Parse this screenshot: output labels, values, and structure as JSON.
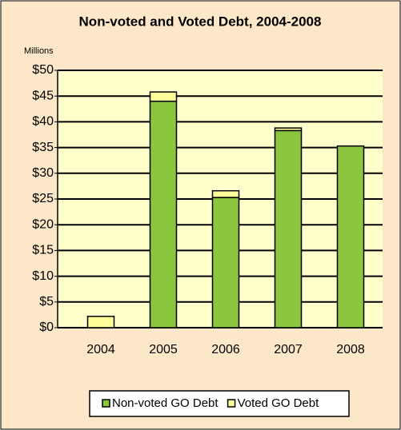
{
  "chart_data": {
    "type": "stacked_bar",
    "title": "Non-voted and Voted Debt, 2004-2008",
    "y_unit_label": "Millions",
    "categories": [
      "2004",
      "2005",
      "2006",
      "2007",
      "2008"
    ],
    "series": [
      {
        "name": "Non-voted GO Debt",
        "color": "#8cc63f",
        "values": [
          0,
          44,
          25.3,
          38.3,
          35.3
        ]
      },
      {
        "name": "Voted GO Debt",
        "color": "#ffff99",
        "values": [
          2.2,
          1.8,
          1.3,
          0.5,
          0
        ]
      }
    ],
    "ylim": [
      0,
      50
    ],
    "yticks": [
      {
        "value": 0,
        "label": "$0"
      },
      {
        "value": 5,
        "label": "$5"
      },
      {
        "value": 10,
        "label": "$10"
      },
      {
        "value": 15,
        "label": "$15"
      },
      {
        "value": 20,
        "label": "$20"
      },
      {
        "value": 25,
        "label": "$25"
      },
      {
        "value": 30,
        "label": "$30"
      },
      {
        "value": 35,
        "label": "$35"
      },
      {
        "value": 40,
        "label": "$40"
      },
      {
        "value": 45,
        "label": "$45"
      },
      {
        "value": 50,
        "label": "$50"
      }
    ],
    "grid": true,
    "legend": "bottom"
  }
}
